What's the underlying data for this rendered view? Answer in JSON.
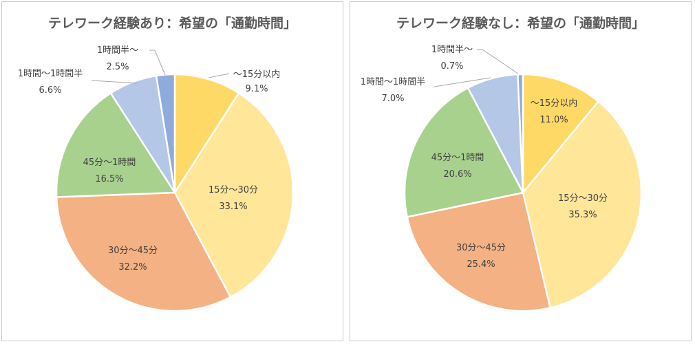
{
  "chart_data": [
    {
      "type": "pie",
      "title": "テレワーク経験あり：希望の「通勤時間」",
      "slices": [
        {
          "label": "～15分以内",
          "value": 9.1,
          "value_label": "9.1%",
          "color": "#FFD966"
        },
        {
          "label": "15分～30分",
          "value": 33.1,
          "value_label": "33.1%",
          "color": "#FFE699"
        },
        {
          "label": "30分～45分",
          "value": 32.2,
          "value_label": "32.2%",
          "color": "#F4B183"
        },
        {
          "label": "45分～1時間",
          "value": 16.5,
          "value_label": "16.5%",
          "color": "#A9D18E"
        },
        {
          "label": "1時間～1時間半",
          "value": 6.6,
          "value_label": "6.6%",
          "color": "#B4C7E7"
        },
        {
          "label": "1時間半～",
          "value": 2.5,
          "value_label": "2.5%",
          "color": "#8FAADC"
        }
      ]
    },
    {
      "type": "pie",
      "title": "テレワーク経験なし：希望の「通勤時間」",
      "slices": [
        {
          "label": "～15分以内",
          "value": 11.0,
          "value_label": "11.0%",
          "color": "#FFD966"
        },
        {
          "label": "15分～30分",
          "value": 35.3,
          "value_label": "35.3%",
          "color": "#FFE699"
        },
        {
          "label": "30分～45分",
          "value": 25.4,
          "value_label": "25.4%",
          "color": "#F4B183"
        },
        {
          "label": "45分～1時間",
          "value": 20.6,
          "value_label": "20.6%",
          "color": "#A9D18E"
        },
        {
          "label": "1時間～1時間半",
          "value": 7.0,
          "value_label": "7.0%",
          "color": "#B4C7E7"
        },
        {
          "label": "1時間半～",
          "value": 0.7,
          "value_label": "0.7%",
          "color": "#8FAADC"
        }
      ]
    }
  ]
}
